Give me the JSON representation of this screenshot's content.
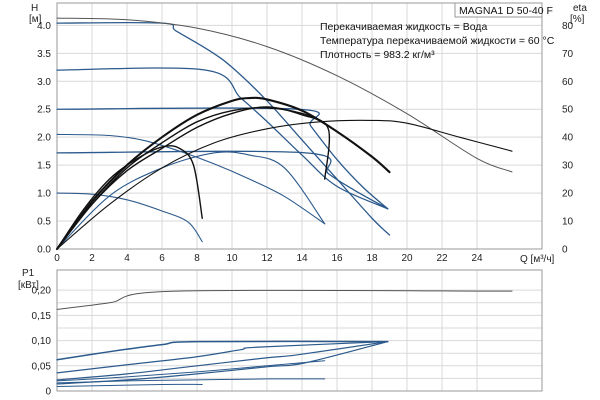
{
  "header": {
    "model_label": "MAGNA1 D 50-40 F",
    "info_lines": [
      "Перекачиваемая жидкость = Вода",
      "Температура перекачиваемой жидкости = 60 °C",
      "Плотность = 983.2 кг/м³"
    ]
  },
  "colors": {
    "blue": "#2c5a8c",
    "black": "#111111",
    "grey": "#555555",
    "grid": "#d9d9d9"
  },
  "chart_data": [
    {
      "type": "line",
      "name": "head-efficiency",
      "ylabel": "H",
      "yunit": "[м]",
      "y2label": "eta",
      "y2unit": "[%]",
      "xlabel": "Q [м³/ч]",
      "xlim": [
        0,
        28
      ],
      "ylim": [
        0,
        4.4
      ],
      "y2lim": [
        0,
        88
      ],
      "grid": true,
      "x_ticks": [
        "0",
        "2",
        "4",
        "6",
        "8",
        "10",
        "12",
        "14",
        "16",
        "18",
        "20",
        "22",
        "24"
      ],
      "x_tick_values": [
        0,
        2,
        4,
        6,
        8,
        10,
        12,
        14,
        16,
        18,
        20,
        22,
        24
      ],
      "y_ticks": [
        "0.0",
        "0.5",
        "1.0",
        "1.5",
        "2.0",
        "2.5",
        "3.0",
        "3.5",
        "4.0"
      ],
      "y_tick_values": [
        0,
        0.5,
        1,
        1.5,
        2,
        2.5,
        3,
        3.5,
        4
      ],
      "y2_ticks": [
        "0",
        "10",
        "20",
        "30",
        "40",
        "50",
        "60",
        "70",
        "80"
      ],
      "y2_tick_values": [
        0,
        10,
        20,
        30,
        40,
        50,
        60,
        70,
        80
      ],
      "series": [
        {
          "kind": "head",
          "color": "blue",
          "width": 1.3,
          "points": [
            [
              0,
              4.04
            ],
            [
              6,
              4.04
            ],
            [
              6.8,
              3.9
            ],
            [
              8.7,
              3.55
            ],
            [
              10,
              3.25
            ],
            [
              12,
              2.65
            ],
            [
              14,
              1.95
            ],
            [
              16,
              1.25
            ],
            [
              18,
              0.55
            ],
            [
              19,
              0.25
            ]
          ]
        },
        {
          "kind": "head",
          "color": "blue",
          "width": 1.3,
          "points": [
            [
              0,
              3.2
            ],
            [
              8.5,
              3.2
            ],
            [
              10.5,
              2.7
            ],
            [
              12,
              2.28
            ],
            [
              14,
              1.68
            ],
            [
              16,
              1.12
            ],
            [
              18.9,
              0.72
            ]
          ]
        },
        {
          "kind": "head",
          "color": "blue",
          "width": 1.3,
          "points": [
            [
              0,
              2.5
            ],
            [
              13.8,
              2.5
            ],
            [
              14.5,
              2.2
            ],
            [
              16,
              1.6
            ],
            [
              17.5,
              1.1
            ],
            [
              18.9,
              0.72
            ]
          ]
        },
        {
          "kind": "head",
          "color": "blue",
          "width": 1.3,
          "points": [
            [
              0,
              1.72
            ],
            [
              14.2,
              1.72
            ],
            [
              15.5,
              1.35
            ],
            [
              17,
              1.05
            ],
            [
              18.9,
              0.72
            ]
          ]
        },
        {
          "kind": "head",
          "color": "blue",
          "width": 1.1,
          "points": [
            [
              0,
              2.05
            ],
            [
              3,
              2.03
            ],
            [
              5,
              1.94
            ],
            [
              7,
              1.75
            ],
            [
              9,
              1.52
            ],
            [
              11,
              1.25
            ],
            [
              13,
              0.94
            ],
            [
              15.3,
              0.45
            ]
          ]
        },
        {
          "kind": "head",
          "color": "blue",
          "width": 1.1,
          "points": [
            [
              0,
              1.0
            ],
            [
              2,
              0.98
            ],
            [
              4,
              0.88
            ],
            [
              6,
              0.68
            ],
            [
              7.5,
              0.48
            ],
            [
              8.3,
              0.13
            ]
          ]
        },
        {
          "kind": "head",
          "color": "blue",
          "width": 1.1,
          "points": [
            [
              0,
              0.0
            ],
            [
              3,
              0.95
            ],
            [
              6,
              1.45
            ],
            [
              9,
              1.72
            ],
            [
              11,
              1.68
            ],
            [
              13,
              1.45
            ],
            [
              15.3,
              0.45
            ]
          ]
        },
        {
          "kind": "head",
          "color": "grey",
          "width": 1.0,
          "points": [
            [
              0,
              4.13
            ],
            [
              4,
              4.1
            ],
            [
              8,
              3.95
            ],
            [
              12,
              3.62
            ],
            [
              16,
              3.1
            ],
            [
              20,
              2.42
            ],
            [
              24,
              1.62
            ],
            [
              26,
              1.38
            ]
          ]
        },
        {
          "kind": "efficiency",
          "color": "black",
          "width": 2.1,
          "points": [
            [
              0,
              0
            ],
            [
              2,
              17
            ],
            [
              4,
              30
            ],
            [
              6,
              40
            ],
            [
              8,
              48
            ],
            [
              10,
              53
            ],
            [
              11,
              54
            ],
            [
              12,
              53.5
            ],
            [
              14,
              49.5
            ],
            [
              16,
              42
            ],
            [
              18,
              33
            ],
            [
              19,
              27.5
            ]
          ]
        },
        {
          "kind": "efficiency",
          "color": "black",
          "width": 1.4,
          "points": [
            [
              0,
              0
            ],
            [
              2,
              16
            ],
            [
              4,
              29
            ],
            [
              6,
              38
            ],
            [
              8,
              45.5
            ],
            [
              10,
              49.5
            ],
            [
              12,
              50.5
            ],
            [
              14,
              48.5
            ],
            [
              15.3,
              45
            ]
          ]
        },
        {
          "kind": "efficiency",
          "color": "black",
          "width": 1.4,
          "points": [
            [
              0,
              0
            ],
            [
              2,
              16
            ],
            [
              4,
              28
            ],
            [
              6,
              36
            ],
            [
              8,
              43.5
            ],
            [
              10,
              48.5
            ],
            [
              12,
              50.8
            ],
            [
              14,
              48
            ],
            [
              15.5,
              43
            ],
            [
              15.3,
              25
            ]
          ]
        },
        {
          "kind": "efficiency",
          "color": "black",
          "width": 1.4,
          "points": [
            [
              0,
              0
            ],
            [
              1.5,
              14
            ],
            [
              3,
              25
            ],
            [
              4.5,
              32
            ],
            [
              6,
              36.5
            ],
            [
              7,
              36
            ],
            [
              7.8,
              30
            ],
            [
              8.3,
              11
            ]
          ]
        },
        {
          "kind": "efficiency",
          "color": "black",
          "width": 1.1,
          "points": [
            [
              0,
              0
            ],
            [
              3,
              16
            ],
            [
              6,
              29
            ],
            [
              9,
              38
            ],
            [
              12,
              43
            ],
            [
              15,
              45.5
            ],
            [
              18,
              46
            ],
            [
              20,
              45
            ],
            [
              23,
              40
            ],
            [
              26,
              35
            ]
          ]
        }
      ]
    },
    {
      "type": "line",
      "name": "power",
      "ylabel": "P1",
      "yunit": "[кВт]",
      "xlim": [
        0,
        28
      ],
      "ylim": [
        0,
        0.24
      ],
      "grid": true,
      "y_ticks": [
        "0",
        "0,05",
        "0,10",
        "0,15",
        "0,20"
      ],
      "y_tick_values": [
        0,
        0.025,
        0.05,
        0.075,
        0.1,
        0.125,
        0.15,
        0.175,
        0.2
      ],
      "y_tick_labels_full": [
        "0",
        "0,05",
        "0,10",
        "0,15",
        "0,20"
      ],
      "series": [
        {
          "color": "grey",
          "width": 1.0,
          "points": [
            [
              0,
              0.162
            ],
            [
              3,
              0.175
            ],
            [
              6.8,
              0.198
            ],
            [
              26,
              0.198
            ]
          ]
        },
        {
          "color": "blue",
          "width": 1.5,
          "points": [
            [
              0,
              0.062
            ],
            [
              3,
              0.078
            ],
            [
              6,
              0.092
            ],
            [
              8,
              0.098
            ],
            [
              18.9,
              0.098
            ]
          ]
        },
        {
          "color": "blue",
          "width": 1.2,
          "points": [
            [
              0,
              0.036
            ],
            [
              4,
              0.052
            ],
            [
              8,
              0.068
            ],
            [
              10.5,
              0.082
            ],
            [
              11.5,
              0.087
            ],
            [
              18.9,
              0.098
            ]
          ]
        },
        {
          "color": "blue",
          "width": 1.2,
          "points": [
            [
              0,
              0.022
            ],
            [
              4,
              0.034
            ],
            [
              8,
              0.05
            ],
            [
              12,
              0.066
            ],
            [
              13.8,
              0.072
            ],
            [
              18.9,
              0.098
            ]
          ]
        },
        {
          "color": "blue",
          "width": 1.2,
          "points": [
            [
              0,
              0.014
            ],
            [
              4,
              0.022
            ],
            [
              8,
              0.034
            ],
            [
              12,
              0.048
            ],
            [
              14.2,
              0.056
            ],
            [
              18.9,
              0.098
            ]
          ]
        },
        {
          "color": "blue",
          "width": 1.0,
          "points": [
            [
              0,
              0.02
            ],
            [
              4,
              0.028
            ],
            [
              8,
              0.038
            ],
            [
              12,
              0.05
            ],
            [
              15.3,
              0.06
            ]
          ]
        },
        {
          "color": "blue",
          "width": 1.0,
          "points": [
            [
              0,
              0.016
            ],
            [
              4,
              0.02
            ],
            [
              8,
              0.022
            ],
            [
              12,
              0.024
            ],
            [
              15.3,
              0.024
            ]
          ]
        },
        {
          "color": "blue",
          "width": 1.0,
          "points": [
            [
              0,
              0.009
            ],
            [
              3,
              0.011
            ],
            [
              6,
              0.013
            ],
            [
              8.3,
              0.013
            ]
          ]
        }
      ]
    }
  ]
}
